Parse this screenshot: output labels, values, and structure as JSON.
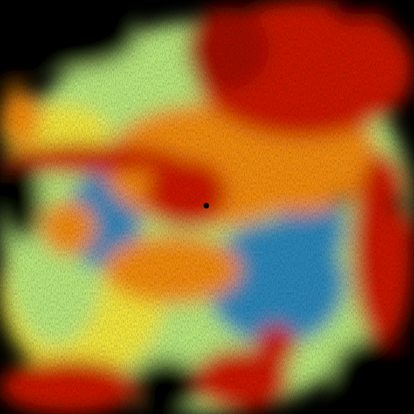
{
  "palette": {
    "background": "#000000",
    "blue": "#2a86b8",
    "cyan": "#6cc6c8",
    "green": "#b8e67a",
    "yellow": "#f2e63a",
    "orange": "#f08a10",
    "red": "#c81400",
    "darkred": "#a00800"
  },
  "radar_site_marker": "dot"
}
